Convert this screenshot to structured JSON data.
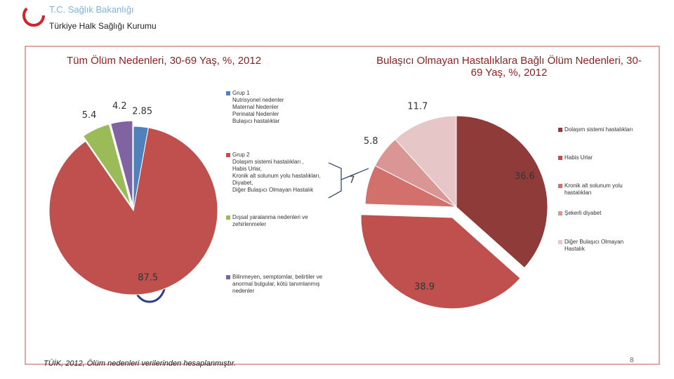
{
  "header": {
    "ministry": "T.C. Sağlık Bakanlığı",
    "institution": "Türkiye Halk Sağlığı Kurumu"
  },
  "chart_data": [
    {
      "type": "pie",
      "title": "Tüm Ölüm Nedenleri, 30-69 Yaş, %,  2012",
      "categories": [
        "Grup 1\nNutrisyonel nedenler\nMaternal Nedenler\nPerinatal Nedenler\nBulaşıcı hastalıklar",
        "Grup 2\nDolaşım sistemi hastalıkları ,\nHabis Urlar,\nKronik alt solunum yolu hastalıkları,\nDiyabet,\nDiğer Bulaşıcı Olmayan Hastalık",
        "Dışsal yaralanma nedenleri ve\nzehirlenmeler",
        "Bilinmeyen, semptomlar, belirtiler ve\nanormal bulgular, kötü tanımlanmış\nnedenler"
      ],
      "values": [
        2.85,
        87.5,
        5.4,
        4.2
      ],
      "colors": [
        "#4f81bd",
        "#c0504d",
        "#9bbb59",
        "#8064a2"
      ]
    },
    {
      "type": "pie",
      "title": "Bulaşıcı Olmayan Hastalıklara Bağlı Ölüm Nedenleri, 30-69 Yaş,  %, 2012",
      "categories": [
        "Dolaşım sistemi hastalıkları",
        "Habis Urlar",
        "Kronik alt solunum yolu\nhastalıkları",
        "Şekerli diyabet",
        "Diğer Bulaşıcı Olmayan\nHastalık"
      ],
      "values": [
        36.6,
        38.9,
        7,
        5.8,
        11.7
      ],
      "colors": [
        "#8e3b39",
        "#c0504d",
        "#d2706c",
        "#d99694",
        "#e6c6c6"
      ]
    }
  ],
  "footer": {
    "source": "TÜİK, 2012, Ölüm nedenleri verilerinden hesaplanmıştır.",
    "page": "8"
  }
}
